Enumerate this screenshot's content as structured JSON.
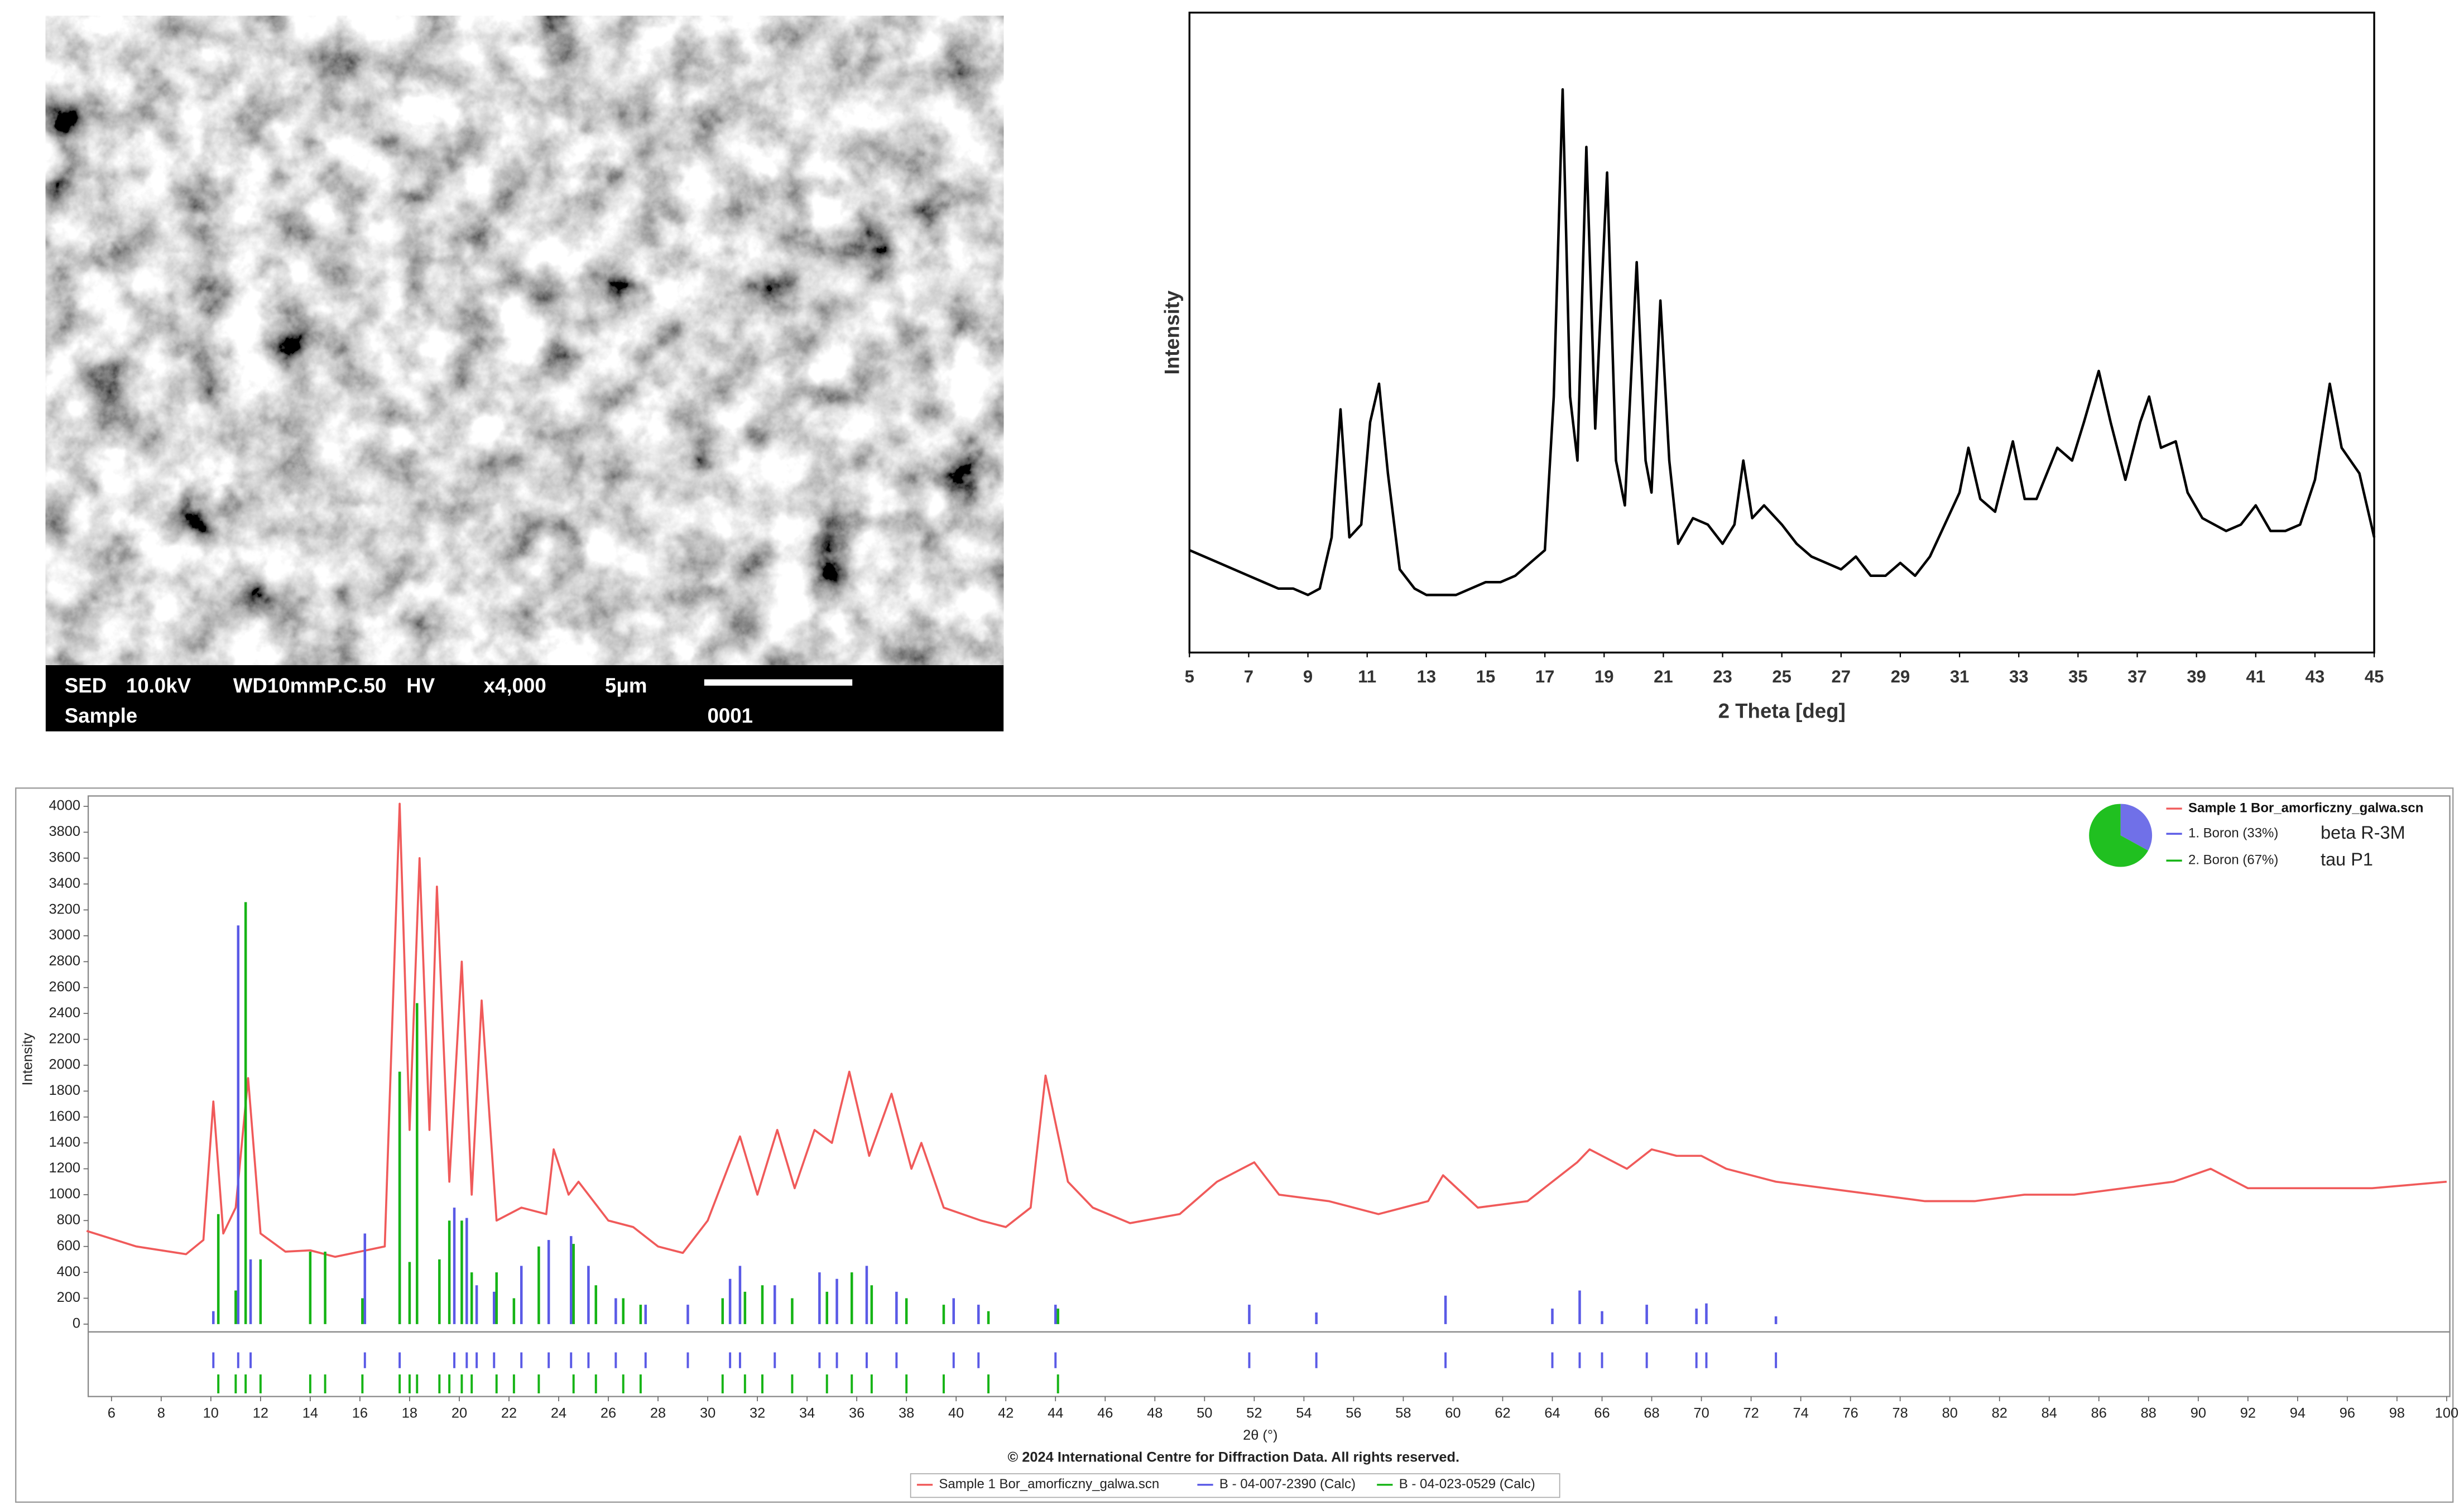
{
  "sem_image": {
    "line1": [
      "SED",
      "10.0kV",
      "WD10mmP.C.50",
      "HV",
      "x4,000",
      "5μm"
    ],
    "line2": [
      "Sample",
      "0001"
    ]
  },
  "chart_data": [
    {
      "type": "line",
      "y_label": "Intensity",
      "x_label": "2 Theta [deg]",
      "xlim": [
        5,
        45
      ],
      "ylim": [
        0,
        100
      ],
      "xticks": [
        5,
        7,
        9,
        11,
        13,
        15,
        17,
        19,
        21,
        23,
        25,
        27,
        29,
        31,
        33,
        35,
        37,
        39,
        41,
        43,
        45
      ],
      "series": [
        {
          "color": "#000000",
          "x": [
            5,
            5.5,
            6,
            6.5,
            7,
            7.5,
            8,
            8.5,
            9,
            9.4,
            9.8,
            10.1,
            10.4,
            10.8,
            11.1,
            11.4,
            11.7,
            12.1,
            12.6,
            13,
            13.5,
            14,
            14.5,
            15,
            15.5,
            16,
            16.5,
            17,
            17.3,
            17.6,
            17.85,
            18.1,
            18.4,
            18.7,
            19.1,
            19.4,
            19.7,
            20.1,
            20.4,
            20.6,
            20.9,
            21.2,
            21.5,
            22,
            22.5,
            23,
            23.4,
            23.7,
            24,
            24.4,
            25,
            25.5,
            26,
            26.5,
            27,
            27.5,
            28,
            28.5,
            29,
            29.5,
            30,
            30.5,
            31,
            31.3,
            31.7,
            32.2,
            32.8,
            33.2,
            33.6,
            34.3,
            34.8,
            35.2,
            35.7,
            36.1,
            36.6,
            37.1,
            37.4,
            37.8,
            38.3,
            38.7,
            39.2,
            40,
            40.5,
            41,
            41.5,
            42,
            42.5,
            43,
            43.5,
            43.9,
            44.2,
            44.5,
            45
          ],
          "values": [
            16,
            15,
            14,
            13,
            12,
            11,
            10,
            10,
            9,
            10,
            18,
            38,
            18,
            20,
            36,
            42,
            28,
            13,
            10,
            9,
            9,
            9,
            10,
            11,
            11,
            12,
            14,
            16,
            40,
            88,
            40,
            30,
            79,
            35,
            75,
            30,
            23,
            61,
            30,
            25,
            55,
            30,
            17,
            21,
            20,
            17,
            20,
            30,
            21,
            23,
            20,
            17,
            15,
            14,
            13,
            15,
            12,
            12,
            14,
            12,
            15,
            20,
            25,
            32,
            24,
            22,
            33,
            24,
            24,
            32,
            30,
            36,
            44,
            36,
            27,
            36,
            40,
            32,
            33,
            25,
            21,
            19,
            20,
            23,
            19,
            19,
            20,
            27,
            42,
            32,
            30,
            28,
            18
          ]
        }
      ]
    },
    {
      "type": "line",
      "y_label": "Intensity",
      "x_label": "2θ (°)",
      "copyright": "© 2024 International Centre for Diffraction Data. All rights reserved.",
      "legend_position": "bottom",
      "xlim": [
        5,
        100
      ],
      "ylim": [
        -60,
        4080
      ],
      "xticks": [
        6,
        8,
        10,
        12,
        14,
        16,
        18,
        20,
        22,
        24,
        26,
        28,
        30,
        32,
        34,
        36,
        38,
        40,
        42,
        44,
        46,
        48,
        50,
        52,
        54,
        56,
        58,
        60,
        62,
        64,
        66,
        68,
        70,
        72,
        74,
        76,
        78,
        80,
        82,
        84,
        86,
        88,
        90,
        92,
        94,
        96,
        98,
        100
      ],
      "yticks": [
        0,
        200,
        400,
        600,
        800,
        1000,
        1200,
        1400,
        1600,
        1800,
        2000,
        2200,
        2400,
        2600,
        2800,
        3000,
        3200,
        3400,
        3600,
        3800,
        4000
      ],
      "series": [
        {
          "name": "Sample 1 Bor_amorficzny_galwa.scn",
          "color": "#f05a5a",
          "style": "line",
          "x": [
            5,
            7,
            9,
            9.7,
            10.1,
            10.5,
            11.0,
            11.5,
            12.0,
            13,
            14,
            15,
            16,
            17,
            17.6,
            18.0,
            18.4,
            18.8,
            19.1,
            19.6,
            20.1,
            20.5,
            20.9,
            21.5,
            22.5,
            23.5,
            23.8,
            24.4,
            24.8,
            26,
            27,
            28,
            29,
            30,
            31.3,
            32,
            32.8,
            33.5,
            34.3,
            35,
            35.7,
            36.5,
            37.4,
            38.2,
            38.6,
            39.5,
            41,
            42,
            43,
            43.6,
            44.5,
            45.5,
            47,
            49,
            50.5,
            51.5,
            52,
            53,
            55,
            57,
            59,
            59.6,
            61,
            63,
            64,
            65,
            65.5,
            67,
            68,
            69,
            70,
            71,
            73,
            75,
            77,
            79,
            81,
            83,
            85,
            87,
            89,
            90.5,
            92,
            95,
            97,
            100
          ],
          "values": [
            720,
            600,
            540,
            650,
            1720,
            700,
            900,
            1900,
            700,
            560,
            570,
            520,
            560,
            600,
            4020,
            1500,
            3600,
            1500,
            3380,
            1100,
            2800,
            1000,
            2500,
            800,
            900,
            850,
            1350,
            1000,
            1100,
            800,
            750,
            600,
            550,
            800,
            1450,
            1000,
            1500,
            1050,
            1500,
            1400,
            1950,
            1300,
            1780,
            1200,
            1400,
            900,
            800,
            750,
            900,
            1920,
            1100,
            900,
            780,
            850,
            1100,
            1200,
            1250,
            1000,
            950,
            850,
            950,
            1150,
            900,
            950,
            1100,
            1250,
            1350,
            1200,
            1350,
            1300,
            1300,
            1200,
            1100,
            1050,
            1000,
            950,
            950,
            1000,
            1000,
            1050,
            1100,
            1200,
            1050,
            1050,
            1050,
            1100
          ]
        },
        {
          "name": "B - 04-007-2390 (Calc)",
          "color": "#5a5ae6",
          "style": "sticks",
          "x": [
            10.1,
            11.1,
            11.6,
            16.2,
            17.6,
            19.8,
            20.3,
            20.7,
            21.4,
            22.5,
            23.6,
            24.5,
            25.2,
            26.3,
            27.5,
            29.2,
            30.9,
            31.3,
            32.7,
            34.5,
            35.2,
            36.4,
            37.6,
            39.9,
            40.9,
            44.0,
            51.8,
            54.5,
            59.7,
            64.0,
            65.1,
            66.0,
            67.8,
            69.8,
            70.2,
            73.0
          ],
          "values": [
            100,
            3080,
            500,
            700,
            1950,
            900,
            820,
            300,
            250,
            450,
            650,
            680,
            450,
            200,
            150,
            150,
            350,
            450,
            300,
            400,
            350,
            450,
            250,
            200,
            150,
            150,
            150,
            90,
            220,
            120,
            260,
            100,
            150,
            120,
            160,
            60
          ]
        },
        {
          "name": "B - 04-023-0529 (Calc)",
          "color": "#16b416",
          "style": "sticks",
          "x": [
            10.3,
            11.0,
            11.4,
            12.0,
            14.0,
            14.6,
            16.1,
            17.6,
            18.0,
            18.3,
            19.2,
            19.6,
            20.1,
            20.5,
            21.5,
            22.2,
            23.2,
            24.6,
            25.5,
            26.6,
            27.3,
            30.6,
            31.5,
            32.2,
            33.4,
            34.8,
            35.8,
            36.6,
            38.0,
            39.5,
            41.3,
            44.1
          ],
          "values": [
            850,
            260,
            3260,
            500,
            560,
            560,
            200,
            1950,
            480,
            2480,
            500,
            800,
            800,
            400,
            400,
            200,
            600,
            620,
            300,
            200,
            150,
            200,
            250,
            300,
            200,
            250,
            400,
            300,
            200,
            150,
            100,
            120
          ]
        }
      ]
    },
    {
      "type": "pie",
      "categories": [
        "1. Boron (33%)",
        "2. Boron (67%)"
      ],
      "values": [
        33,
        67
      ],
      "colors": [
        "#7070e8",
        "#20c020"
      ],
      "notes": [
        "beta R-3M",
        "tau P1"
      ]
    }
  ]
}
